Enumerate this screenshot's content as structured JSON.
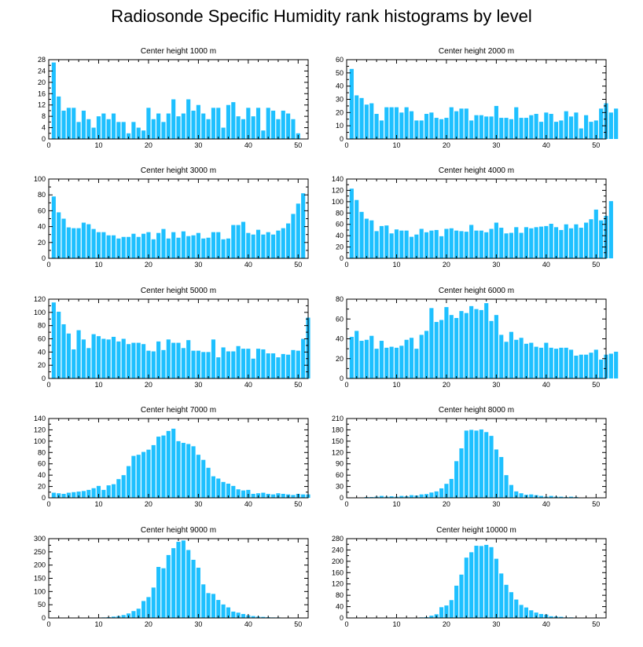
{
  "title": "Radiosonde Specific Humidity rank histograms by level",
  "colors": {
    "bar": "#1ec0ff",
    "axis": "#000000"
  },
  "chart_data": [
    {
      "type": "bar",
      "title": "Center height 1000 m",
      "xlim": [
        0,
        52
      ],
      "ylim": [
        0,
        28
      ],
      "yticks": [
        0,
        4,
        8,
        12,
        16,
        20,
        24,
        28
      ],
      "xticks": [
        0,
        10,
        20,
        30,
        40,
        50
      ],
      "values": [
        27,
        15,
        10,
        11,
        11,
        6,
        10,
        7,
        4,
        8,
        9,
        7,
        9,
        6,
        6,
        2,
        6,
        4,
        3,
        11,
        7,
        9,
        6,
        9,
        14,
        8,
        9,
        14,
        10,
        12,
        9,
        7,
        11,
        11,
        4,
        12,
        13,
        8,
        7,
        11,
        8,
        11,
        3,
        11,
        10,
        7,
        10,
        9,
        7,
        2
      ]
    },
    {
      "type": "bar",
      "title": "Center height 2000 m",
      "xlim": [
        0,
        52
      ],
      "ylim": [
        0,
        60
      ],
      "yticks": [
        0,
        10,
        20,
        30,
        40,
        50,
        60
      ],
      "xticks": [
        0,
        10,
        20,
        30,
        40,
        50
      ],
      "values": [
        53,
        33,
        31,
        26,
        27,
        19,
        14,
        24,
        24,
        24,
        20,
        24,
        21,
        14,
        14,
        19,
        20,
        16,
        15,
        16,
        24,
        21,
        23,
        23,
        14,
        18,
        18,
        17,
        17,
        25,
        16,
        16,
        15,
        24,
        16,
        16,
        18,
        19,
        13,
        20,
        19,
        13,
        14,
        21,
        17,
        20,
        8,
        18,
        13,
        14,
        23,
        27,
        20,
        23
      ]
    },
    {
      "type": "bar",
      "title": "Center height 3000 m",
      "xlim": [
        0,
        52
      ],
      "ylim": [
        0,
        100
      ],
      "yticks": [
        0,
        20,
        40,
        60,
        80,
        100
      ],
      "xticks": [
        0,
        10,
        20,
        30,
        40,
        50
      ],
      "values": [
        78,
        58,
        50,
        39,
        38,
        38,
        45,
        43,
        37,
        33,
        33,
        29,
        29,
        25,
        27,
        27,
        31,
        27,
        31,
        33,
        24,
        32,
        37,
        25,
        33,
        26,
        34,
        28,
        29,
        32,
        25,
        26,
        33,
        33,
        24,
        25,
        42,
        42,
        46,
        32,
        30,
        36,
        30,
        33,
        30,
        35,
        38,
        44,
        56,
        69,
        82
      ]
    },
    {
      "type": "bar",
      "title": "Center height 4000 m",
      "xlim": [
        0,
        52
      ],
      "ylim": [
        0,
        140
      ],
      "yticks": [
        0,
        20,
        40,
        60,
        80,
        100,
        120,
        140
      ],
      "xticks": [
        0,
        10,
        20,
        30,
        40,
        50
      ],
      "values": [
        123,
        103,
        82,
        70,
        67,
        48,
        57,
        58,
        44,
        51,
        49,
        49,
        38,
        42,
        52,
        46,
        49,
        50,
        39,
        52,
        53,
        49,
        48,
        47,
        59,
        49,
        49,
        46,
        52,
        63,
        54,
        44,
        45,
        55,
        45,
        55,
        53,
        55,
        56,
        57,
        61,
        55,
        50,
        60,
        53,
        60,
        54,
        63,
        69,
        86,
        67,
        75,
        101
      ]
    },
    {
      "type": "bar",
      "title": "Center height 5000 m",
      "xlim": [
        0,
        52
      ],
      "ylim": [
        0,
        120
      ],
      "yticks": [
        0,
        20,
        40,
        60,
        80,
        100,
        120
      ],
      "xticks": [
        0,
        10,
        20,
        30,
        40,
        50
      ],
      "values": [
        115,
        101,
        82,
        68,
        44,
        73,
        59,
        46,
        67,
        64,
        60,
        59,
        63,
        56,
        60,
        52,
        54,
        54,
        52,
        42,
        41,
        56,
        43,
        59,
        54,
        54,
        46,
        58,
        42,
        42,
        40,
        40,
        59,
        32,
        47,
        41,
        41,
        49,
        45,
        45,
        30,
        45,
        44,
        38,
        38,
        32,
        37,
        36,
        43,
        42,
        60,
        92
      ]
    },
    {
      "type": "bar",
      "title": "Center height 6000 m",
      "xlim": [
        0,
        52
      ],
      "ylim": [
        0,
        80
      ],
      "yticks": [
        0,
        20,
        40,
        60,
        80
      ],
      "xticks": [
        0,
        10,
        20,
        30,
        40,
        50
      ],
      "values": [
        42,
        48,
        38,
        39,
        43,
        30,
        38,
        31,
        32,
        31,
        33,
        39,
        41,
        30,
        44,
        48,
        71,
        57,
        59,
        72,
        64,
        61,
        68,
        66,
        73,
        70,
        69,
        76,
        58,
        64,
        44,
        37,
        47,
        39,
        41,
        35,
        36,
        32,
        31,
        36,
        31,
        30,
        31,
        31,
        29,
        23,
        24,
        24,
        26,
        29,
        19,
        24,
        25,
        27
      ]
    },
    {
      "type": "bar",
      "title": "Center height 7000 m",
      "xlim": [
        0,
        52
      ],
      "ylim": [
        0,
        140
      ],
      "yticks": [
        0,
        20,
        40,
        60,
        80,
        100,
        120,
        140
      ],
      "xticks": [
        0,
        10,
        20,
        30,
        40,
        50
      ],
      "values": [
        9,
        8,
        7,
        9,
        10,
        11,
        12,
        14,
        17,
        21,
        14,
        22,
        24,
        33,
        40,
        56,
        74,
        76,
        81,
        85,
        93,
        108,
        110,
        118,
        122,
        100,
        97,
        95,
        91,
        76,
        67,
        53,
        38,
        34,
        28,
        25,
        21,
        15,
        13,
        14,
        7,
        8,
        9,
        7,
        6,
        8,
        7,
        6,
        5,
        7,
        6,
        6
      ]
    },
    {
      "type": "bar",
      "title": "Center height 8000 m",
      "xlim": [
        0,
        52
      ],
      "ylim": [
        0,
        210
      ],
      "yticks": [
        0,
        30,
        60,
        90,
        120,
        150,
        180,
        210
      ],
      "xticks": [
        0,
        10,
        20,
        30,
        40,
        50
      ],
      "values": [
        0,
        0,
        1,
        2,
        2,
        3,
        5,
        3,
        4,
        3,
        5,
        4,
        7,
        6,
        9,
        10,
        14,
        17,
        25,
        37,
        50,
        97,
        131,
        178,
        180,
        178,
        181,
        174,
        164,
        128,
        108,
        60,
        34,
        17,
        12,
        8,
        9,
        7,
        5,
        3,
        5,
        3,
        3,
        2,
        3,
        2,
        1,
        0,
        1,
        0,
        0,
        0
      ]
    },
    {
      "type": "bar",
      "title": "Center height 9000 m",
      "xlim": [
        0,
        52
      ],
      "ylim": [
        0,
        300
      ],
      "yticks": [
        0,
        50,
        100,
        150,
        200,
        250,
        300
      ],
      "xticks": [
        0,
        10,
        20,
        30,
        40,
        50
      ],
      "values": [
        0,
        0,
        0,
        0,
        0,
        0,
        0,
        0,
        0,
        1,
        2,
        3,
        5,
        7,
        11,
        17,
        26,
        35,
        64,
        79,
        115,
        193,
        188,
        238,
        264,
        288,
        293,
        257,
        220,
        190,
        127,
        94,
        91,
        68,
        51,
        40,
        24,
        20,
        15,
        10,
        7,
        5,
        4,
        3,
        2,
        2,
        1,
        1,
        1,
        0,
        0,
        0
      ]
    },
    {
      "type": "bar",
      "title": "Center height 10000 m",
      "xlim": [
        0,
        52
      ],
      "ylim": [
        0,
        280
      ],
      "yticks": [
        0,
        40,
        80,
        120,
        160,
        200,
        240,
        280
      ],
      "xticks": [
        0,
        10,
        20,
        30,
        40,
        50
      ],
      "values": [
        0,
        0,
        0,
        0,
        0,
        0,
        0,
        0,
        0,
        0,
        0,
        0,
        0,
        1,
        2,
        3,
        8,
        13,
        38,
        44,
        63,
        114,
        153,
        213,
        232,
        255,
        254,
        258,
        250,
        209,
        157,
        117,
        91,
        65,
        46,
        37,
        27,
        19,
        14,
        12,
        6,
        5,
        4,
        2,
        2,
        1,
        1,
        1,
        0,
        0,
        0,
        0
      ]
    }
  ]
}
